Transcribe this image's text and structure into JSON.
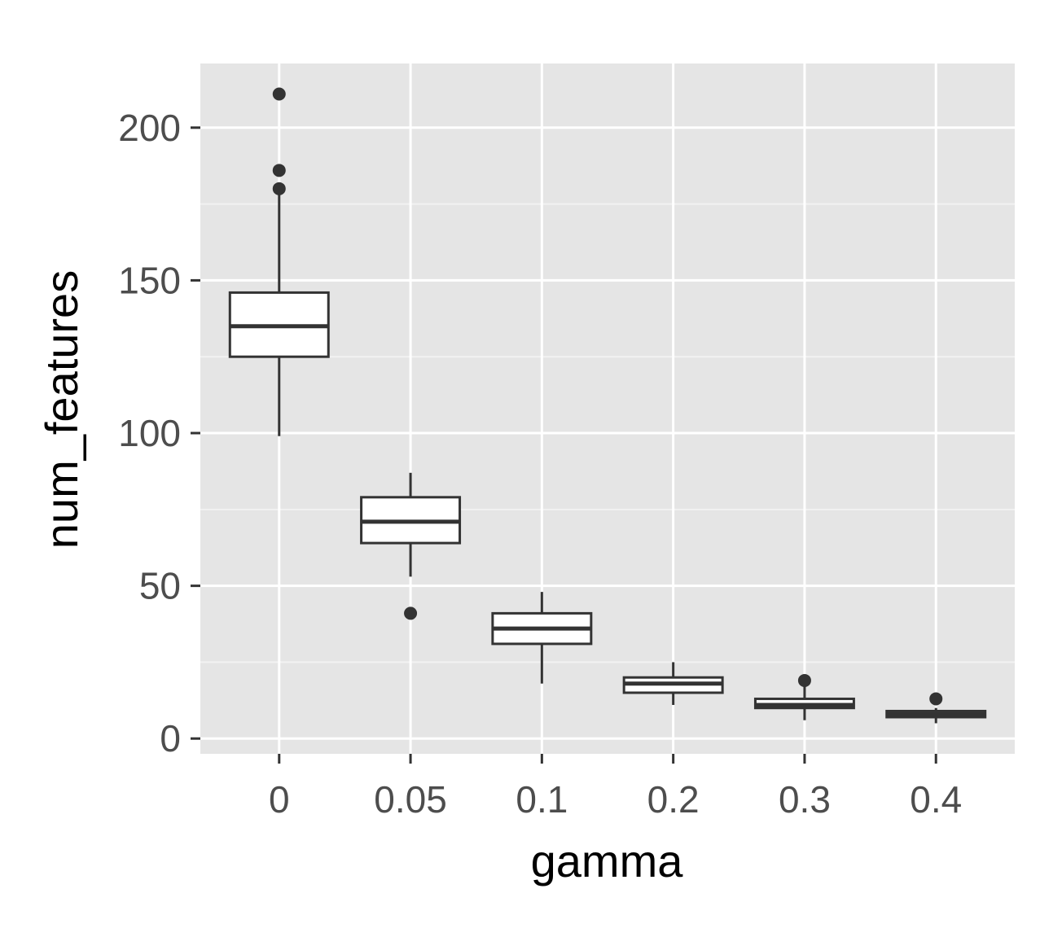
{
  "chart_data": {
    "type": "boxplot",
    "title": "",
    "xlabel": "gamma",
    "ylabel": "num_features",
    "categories": [
      "0",
      "0.05",
      "0.1",
      "0.2",
      "0.3",
      "0.4"
    ],
    "ylim": [
      -5,
      221
    ],
    "yticks": [
      0,
      50,
      100,
      150,
      200
    ],
    "grid": true,
    "legend": "none",
    "boxes": [
      {
        "category": "0",
        "whisker_low": 99,
        "q1": 125,
        "median": 135,
        "q3": 146,
        "whisker_high": 178,
        "outliers": [
          180,
          186,
          211
        ]
      },
      {
        "category": "0.05",
        "whisker_low": 53,
        "q1": 64,
        "median": 71,
        "q3": 79,
        "whisker_high": 87,
        "outliers": [
          41
        ]
      },
      {
        "category": "0.1",
        "whisker_low": 18,
        "q1": 31,
        "median": 36,
        "q3": 41,
        "whisker_high": 48,
        "outliers": []
      },
      {
        "category": "0.2",
        "whisker_low": 11,
        "q1": 15,
        "median": 18,
        "q3": 20,
        "whisker_high": 25,
        "outliers": []
      },
      {
        "category": "0.3",
        "whisker_low": 6,
        "q1": 10,
        "median": 11,
        "q3": 13,
        "whisker_high": 17,
        "outliers": [
          19
        ]
      },
      {
        "category": "0.4",
        "whisker_low": 5,
        "q1": 7,
        "median": 8,
        "q3": 9,
        "whisker_high": 10,
        "outliers": [
          13
        ]
      }
    ],
    "colors": {
      "panel": "#e5e5e5",
      "grid_major": "#ffffff",
      "grid_minor": "#f2f2f2",
      "box_fill": "#ffffff",
      "box_stroke": "#333333",
      "outlier": "#333333",
      "tick_text": "#4d4d4d",
      "axis_title": "#000000"
    }
  }
}
